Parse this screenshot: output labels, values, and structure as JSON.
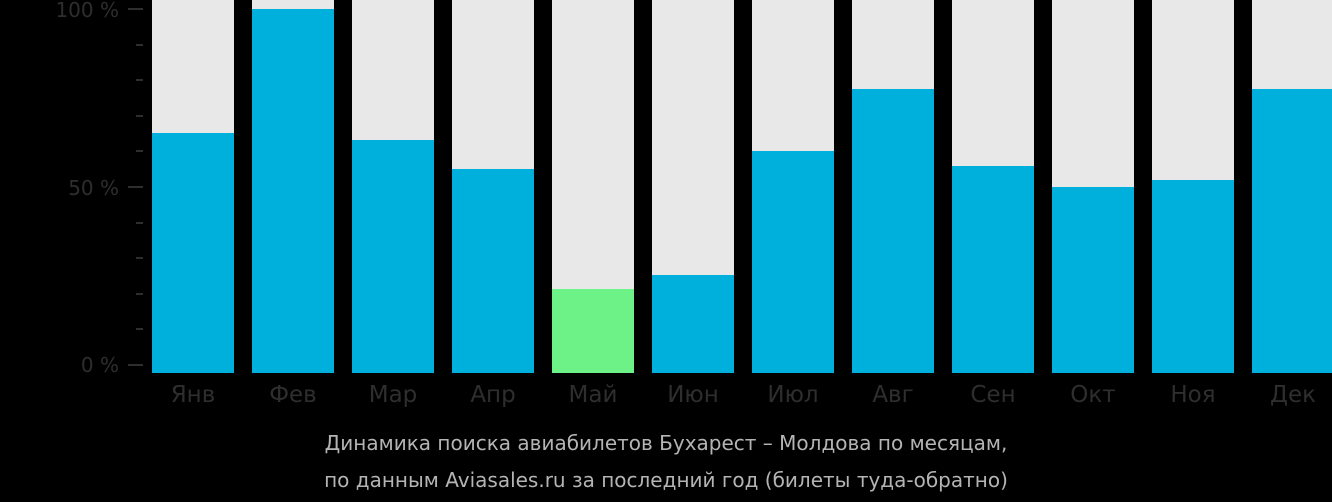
{
  "chart_data": {
    "type": "bar",
    "title": "Динамика поиска авиабилетов Бухарест – Молдова по месяцам, по данным Aviasales.ru за последний год (билеты туда-обратно)",
    "xlabel": "",
    "ylabel": "",
    "ylim": [
      0,
      100
    ],
    "yticks": [
      "0 %",
      "50 %",
      "100 %"
    ],
    "categories": [
      "Янв",
      "Фев",
      "Мар",
      "Апр",
      "Май",
      "Июн",
      "Июл",
      "Авг",
      "Сен",
      "Окт",
      "Ноя",
      "Дек"
    ],
    "values": [
      66,
      100,
      64,
      56,
      23,
      27,
      61,
      78,
      57,
      51,
      53,
      78
    ],
    "highlight_index": 4,
    "colors": {
      "bar": "#00b0dc",
      "highlight": "#6cf287",
      "track": "#e8e8e8",
      "background": "#000000"
    }
  },
  "caption": {
    "line1": "Динамика поиска авиабилетов Бухарест – Молдова по месяцам,",
    "line2": "по данным Aviasales.ru за последний год (билеты туда-обратно)"
  },
  "yaxis": {
    "top": "100 %",
    "mid": "50 %",
    "bottom": "0 %"
  }
}
